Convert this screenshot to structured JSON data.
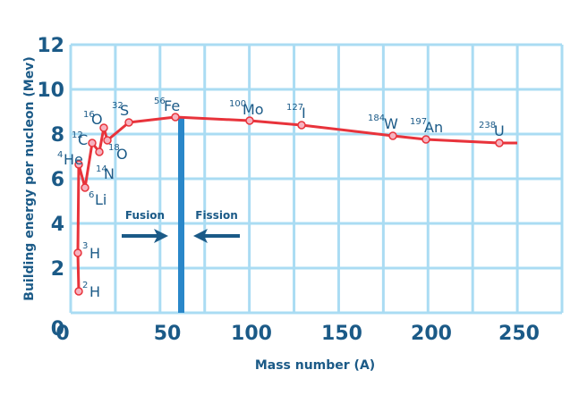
{
  "chart_data": {
    "type": "line",
    "title": "",
    "xlabel": "Mass number (A)",
    "ylabel": "Building energy per nucleon (Mev)",
    "xlim": [
      0,
      270
    ],
    "ylim": [
      0,
      12
    ],
    "x_ticks": [
      "0",
      "50",
      "100",
      "150",
      "200",
      "250"
    ],
    "y_ticks": [
      "0",
      "2",
      "4",
      "6",
      "8",
      "10",
      "12"
    ],
    "grid": true,
    "points": [
      {
        "label": "H",
        "mass": "2",
        "x": 2,
        "y": 1.0
      },
      {
        "label": "H",
        "mass": "3",
        "x": 3,
        "y": 2.7
      },
      {
        "label": "He",
        "mass": "4",
        "x": 4,
        "y": 6.6
      },
      {
        "label": "Li",
        "mass": "6",
        "x": 6,
        "y": 5.6
      },
      {
        "label": "C",
        "mass": "12",
        "x": 12,
        "y": 7.6
      },
      {
        "label": "N",
        "mass": "14",
        "x": 14,
        "y": 7.2
      },
      {
        "label": "O",
        "mass": "16",
        "x": 16,
        "y": 8.3
      },
      {
        "label": "O",
        "mass": "18",
        "x": 18,
        "y": 7.7
      },
      {
        "label": "S",
        "mass": "32",
        "x": 32,
        "y": 8.5
      },
      {
        "label": "Fe",
        "mass": "56",
        "x": 56,
        "y": 8.75
      },
      {
        "label": "Mo",
        "mass": "100",
        "x": 100,
        "y": 8.6
      },
      {
        "label": "I",
        "mass": "127",
        "x": 127,
        "y": 8.4
      },
      {
        "label": "W",
        "mass": "184",
        "x": 184,
        "y": 7.9
      },
      {
        "label": "An",
        "mass": "197",
        "x": 197,
        "y": 7.75
      },
      {
        "label": "U",
        "mass": "238",
        "x": 238,
        "y": 7.6
      }
    ],
    "annotations": [
      {
        "text": "Fusion",
        "arrow": "right"
      },
      {
        "text": "Fission",
        "arrow": "left"
      }
    ],
    "divider_at_mass": 60,
    "colors": {
      "curve": "#e8333b",
      "point_fill": "#f6b3c0",
      "grid": "#aadcf3",
      "text": "#1b5a87",
      "divider": "#2a87c9"
    }
  },
  "labels": {
    "fusion": "Fusion",
    "fission": "Fission",
    "xlabel": "Mass number (A)",
    "ylabel": "Building energy per nucleon (Mev)"
  }
}
